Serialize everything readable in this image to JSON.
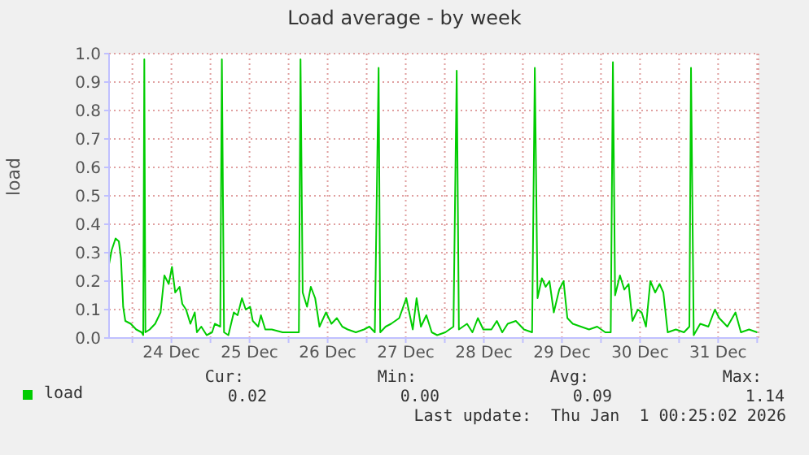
{
  "chart_data": {
    "type": "line",
    "title": "Load average - by week",
    "ylabel": "load",
    "x": [
      "2025-12-23T16:50",
      "2025-12-23T17:40",
      "2025-12-23T18:50",
      "2025-12-23T19:50",
      "2025-12-23T20:30",
      "2025-12-23T21:10",
      "2025-12-23T21:50",
      "2025-12-23T23:30",
      "2025-12-24T01:10",
      "2025-12-24T02:50",
      "2025-12-24T03:20",
      "2025-12-24T03:40",
      "2025-12-24T04:00",
      "2025-12-24T05:20",
      "2025-12-24T07:00",
      "2025-12-24T08:40",
      "2025-12-24T09:50",
      "2025-12-24T11:10",
      "2025-12-24T12:10",
      "2025-12-24T13:10",
      "2025-12-24T14:30",
      "2025-12-24T15:20",
      "2025-12-24T16:30",
      "2025-12-24T17:50",
      "2025-12-24T19:10",
      "2025-12-24T19:50",
      "2025-12-24T21:10",
      "2025-12-24T22:50",
      "2025-12-25T00:30",
      "2025-12-25T01:20",
      "2025-12-25T03:00",
      "2025-12-25T03:30",
      "2025-12-25T04:10",
      "2025-12-25T05:30",
      "2025-12-25T07:10",
      "2025-12-25T08:20",
      "2025-12-25T09:40",
      "2025-12-25T10:50",
      "2025-12-25T12:10",
      "2025-12-25T13:00",
      "2025-12-25T14:40",
      "2025-12-25T15:30",
      "2025-12-25T16:50",
      "2025-12-25T18:50",
      "2025-12-25T22:10",
      "2025-12-26T01:30",
      "2025-12-26T03:10",
      "2025-12-26T03:40",
      "2025-12-26T04:20",
      "2025-12-26T05:40",
      "2025-12-26T06:50",
      "2025-12-26T08:10",
      "2025-12-26T09:30",
      "2025-12-26T11:30",
      "2025-12-26T13:10",
      "2025-12-26T14:50",
      "2025-12-26T16:30",
      "2025-12-26T18:10",
      "2025-12-26T20:40",
      "2025-12-26T23:10",
      "2025-12-27T00:50",
      "2025-12-27T02:30",
      "2025-12-27T03:40",
      "2025-12-27T04:10",
      "2025-12-27T05:50",
      "2025-12-27T07:30",
      "2025-12-27T10:00",
      "2025-12-27T12:10",
      "2025-12-27T14:10",
      "2025-12-27T15:20",
      "2025-12-27T16:40",
      "2025-12-27T18:20",
      "2025-12-27T20:00",
      "2025-12-27T21:40",
      "2025-12-28T00:10",
      "2025-12-28T02:40",
      "2025-12-28T03:40",
      "2025-12-28T04:20",
      "2025-12-28T06:50",
      "2025-12-28T08:30",
      "2025-12-28T10:10",
      "2025-12-28T11:50",
      "2025-12-28T14:20",
      "2025-12-28T16:00",
      "2025-12-28T17:40",
      "2025-12-28T19:20",
      "2025-12-28T21:50",
      "2025-12-29T00:20",
      "2025-12-29T02:50",
      "2025-12-29T03:40",
      "2025-12-29T04:30",
      "2025-12-29T05:50",
      "2025-12-29T07:00",
      "2025-12-29T08:10",
      "2025-12-29T09:30",
      "2025-12-29T11:10",
      "2025-12-29T12:30",
      "2025-12-29T13:40",
      "2025-12-29T15:20",
      "2025-12-29T17:50",
      "2025-12-29T20:20",
      "2025-12-29T22:50",
      "2025-12-30T01:20",
      "2025-12-30T03:00",
      "2025-12-30T03:40",
      "2025-12-30T04:20",
      "2025-12-30T05:50",
      "2025-12-30T07:10",
      "2025-12-30T08:30",
      "2025-12-30T09:40",
      "2025-12-30T11:20",
      "2025-12-30T12:30",
      "2025-12-30T13:50",
      "2025-12-30T15:10",
      "2025-12-30T16:40",
      "2025-12-30T18:00",
      "2025-12-30T19:10",
      "2025-12-30T20:30",
      "2025-12-30T23:00",
      "2025-12-31T01:30",
      "2025-12-31T03:10",
      "2025-12-31T03:40",
      "2025-12-31T04:30",
      "2025-12-31T06:30",
      "2025-12-31T09:00",
      "2025-12-31T11:00",
      "2025-12-31T12:20",
      "2025-12-31T14:50",
      "2025-12-31T17:20",
      "2025-12-31T19:00",
      "2025-12-31T21:30",
      "2026-01-01T00:00"
    ],
    "series": [
      {
        "name": "load",
        "color": "#00cc00",
        "values": [
          0.26,
          0.31,
          0.35,
          0.34,
          0.28,
          0.11,
          0.06,
          0.05,
          0.03,
          0.02,
          0.01,
          0.98,
          0.02,
          0.03,
          0.05,
          0.09,
          0.22,
          0.19,
          0.25,
          0.16,
          0.18,
          0.12,
          0.1,
          0.05,
          0.09,
          0.02,
          0.04,
          0.01,
          0.02,
          0.05,
          0.04,
          0.98,
          0.02,
          0.01,
          0.09,
          0.08,
          0.14,
          0.1,
          0.11,
          0.06,
          0.04,
          0.08,
          0.03,
          0.03,
          0.02,
          0.02,
          0.02,
          0.98,
          0.16,
          0.11,
          0.18,
          0.14,
          0.04,
          0.09,
          0.05,
          0.07,
          0.04,
          0.03,
          0.02,
          0.03,
          0.04,
          0.02,
          0.95,
          0.02,
          0.04,
          0.05,
          0.07,
          0.14,
          0.03,
          0.14,
          0.04,
          0.08,
          0.02,
          0.01,
          0.02,
          0.04,
          0.94,
          0.03,
          0.05,
          0.02,
          0.07,
          0.03,
          0.03,
          0.06,
          0.02,
          0.05,
          0.06,
          0.03,
          0.02,
          0.95,
          0.14,
          0.21,
          0.18,
          0.2,
          0.09,
          0.17,
          0.2,
          0.07,
          0.05,
          0.04,
          0.03,
          0.04,
          0.02,
          0.02,
          0.97,
          0.15,
          0.22,
          0.17,
          0.19,
          0.06,
          0.1,
          0.09,
          0.04,
          0.2,
          0.16,
          0.19,
          0.16,
          0.02,
          0.03,
          0.02,
          0.04,
          0.95,
          0.01,
          0.05,
          0.04,
          0.1,
          0.07,
          0.04,
          0.09,
          0.02,
          0.03,
          0.02
        ]
      }
    ],
    "xlim": [
      "2025-12-23T16:50",
      "2026-01-01T00:25"
    ],
    "xticks": [
      {
        "value": "2025-12-24T00:00",
        "label": null
      },
      {
        "value": "2025-12-24T12:00",
        "label": "24 Dec"
      },
      {
        "value": "2025-12-25T00:00",
        "label": null
      },
      {
        "value": "2025-12-25T12:00",
        "label": "25 Dec"
      },
      {
        "value": "2025-12-26T00:00",
        "label": null
      },
      {
        "value": "2025-12-26T12:00",
        "label": "26 Dec"
      },
      {
        "value": "2025-12-27T00:00",
        "label": null
      },
      {
        "value": "2025-12-27T12:00",
        "label": "27 Dec"
      },
      {
        "value": "2025-12-28T00:00",
        "label": null
      },
      {
        "value": "2025-12-28T12:00",
        "label": "28 Dec"
      },
      {
        "value": "2025-12-29T00:00",
        "label": null
      },
      {
        "value": "2025-12-29T12:00",
        "label": "29 Dec"
      },
      {
        "value": "2025-12-30T00:00",
        "label": null
      },
      {
        "value": "2025-12-30T12:00",
        "label": "30 Dec"
      },
      {
        "value": "2025-12-31T00:00",
        "label": null
      },
      {
        "value": "2025-12-31T12:00",
        "label": "31 Dec"
      },
      {
        "value": "2026-01-01T00:00",
        "label": null
      }
    ],
    "ylim": [
      0,
      1.0
    ],
    "yticks": [
      {
        "value": 0,
        "label": "0.0"
      },
      0.1,
      0.2,
      0.3,
      0.4,
      0.5,
      0.6,
      0.7,
      0.8,
      0.9,
      {
        "value": 1.0,
        "label": "1.0"
      }
    ],
    "grid": true,
    "legend": "bottom left",
    "marker": "none",
    "line_style": "solid",
    "annotations": [
      "Cur:",
      "Min:",
      "Avg:",
      "Max:",
      "0.02",
      "0.00",
      "0.09",
      "1.14",
      "Last update:  Thu Jan  1 00:25:02 2026"
    ]
  }
}
